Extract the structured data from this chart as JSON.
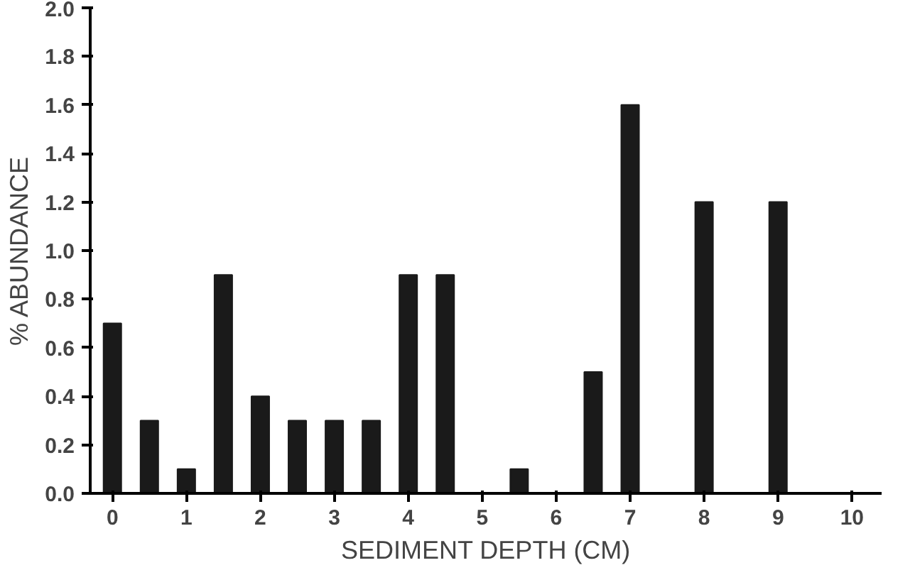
{
  "chart_data": {
    "type": "bar",
    "xlabel": "SEDIMENT DEPTH (CM)",
    "ylabel": "% ABUNDANCE",
    "x": [
      0,
      0.5,
      1,
      1.5,
      2,
      2.5,
      3,
      3.5,
      4,
      4.5,
      5.5,
      6.5,
      7,
      8,
      9
    ],
    "values": [
      0.7,
      0.3,
      0.1,
      0.9,
      0.4,
      0.3,
      0.3,
      0.3,
      0.9,
      0.9,
      0.1,
      0.5,
      1.6,
      1.2,
      1.2
    ],
    "color": "#1a1a1a",
    "xlim": [
      -0.3,
      10.4
    ],
    "xticks": [
      0,
      1,
      2,
      3,
      4,
      5,
      6,
      7,
      8,
      9,
      10
    ],
    "ylim": [
      0,
      2.0
    ],
    "yticks": [
      {
        "value": 0,
        "label": "0.0"
      },
      {
        "value": 0.2,
        "label": "0.2"
      },
      {
        "value": 0.4,
        "label": "0.4"
      },
      {
        "value": 0.6,
        "label": "0.6"
      },
      {
        "value": 0.8,
        "label": "0.8"
      },
      {
        "value": 1,
        "label": "1.0"
      },
      {
        "value": 1.2,
        "label": "1.2"
      },
      {
        "value": 1.4,
        "label": "1.4"
      },
      {
        "value": 1.6,
        "label": "1.6"
      },
      {
        "value": 1.8,
        "label": "1.8"
      },
      {
        "value": 2,
        "label": "2.0"
      }
    ],
    "grid": false
  }
}
